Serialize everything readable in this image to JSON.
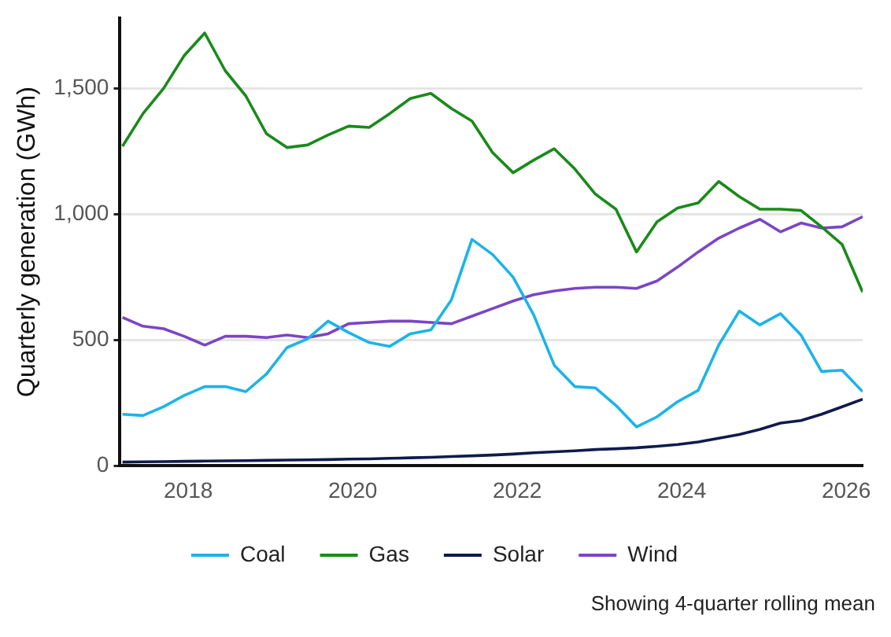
{
  "chart_data": {
    "type": "line",
    "ylabel": "Quarterly generation (GWh)",
    "annotations": [
      "Showing 4-quarter rolling mean"
    ],
    "x": [
      2017.2,
      2017.45,
      2017.7,
      2017.95,
      2018.2,
      2018.45,
      2018.7,
      2018.95,
      2019.2,
      2019.45,
      2019.7,
      2019.95,
      2020.2,
      2020.45,
      2020.7,
      2020.95,
      2021.2,
      2021.45,
      2021.7,
      2021.95,
      2022.2,
      2022.45,
      2022.7,
      2022.95,
      2023.2,
      2023.45,
      2023.7,
      2023.95,
      2024.2,
      2024.45,
      2024.7,
      2024.95,
      2025.2,
      2025.45,
      2025.7,
      2025.95,
      2026.2
    ],
    "series": [
      {
        "name": "Coal",
        "color": "#1cb4e8",
        "values": [
          205,
          200,
          235,
          280,
          315,
          315,
          295,
          365,
          470,
          505,
          575,
          530,
          490,
          475,
          525,
          540,
          660,
          900,
          840,
          750,
          600,
          400,
          315,
          310,
          240,
          155,
          195,
          255,
          300,
          480,
          615,
          560,
          605,
          520,
          375,
          380,
          295
        ]
      },
      {
        "name": "Gas",
        "color": "#1a8a1a",
        "values": [
          1270,
          1400,
          1500,
          1630,
          1720,
          1570,
          1470,
          1320,
          1265,
          1275,
          1315,
          1350,
          1345,
          1400,
          1460,
          1480,
          1420,
          1370,
          1245,
          1165,
          1215,
          1260,
          1180,
          1080,
          1020,
          850,
          970,
          1025,
          1045,
          1130,
          1070,
          1020,
          1020,
          1015,
          950,
          880,
          690
        ]
      },
      {
        "name": "Solar",
        "color": "#0f1b4d",
        "values": [
          15,
          16,
          17,
          18,
          19,
          20,
          21,
          22,
          23,
          24,
          25,
          27,
          28,
          30,
          32,
          34,
          37,
          40,
          43,
          47,
          52,
          56,
          60,
          65,
          68,
          72,
          78,
          85,
          95,
          110,
          125,
          145,
          170,
          180,
          205,
          235,
          265
        ]
      },
      {
        "name": "Wind",
        "color": "#7b45c6",
        "values": [
          590,
          555,
          545,
          515,
          480,
          515,
          515,
          510,
          520,
          510,
          525,
          565,
          570,
          575,
          575,
          570,
          565,
          595,
          625,
          655,
          680,
          695,
          705,
          710,
          710,
          705,
          735,
          790,
          850,
          905,
          945,
          980,
          930,
          965,
          945,
          950,
          990
        ]
      }
    ],
    "xlim": [
      2017.17,
      2026.2
    ],
    "xticks": [
      2018,
      2020,
      2022,
      2024,
      2026
    ],
    "ylim": [
      0,
      1780
    ],
    "yticks": [
      0,
      {
        "value": 500,
        "label": "500"
      },
      {
        "value": 1000,
        "label": "1,000"
      },
      {
        "value": 1500,
        "label": "1,500"
      }
    ],
    "grid": "y",
    "legend": "bottom",
    "marker": "none",
    "line_style": "solid"
  }
}
